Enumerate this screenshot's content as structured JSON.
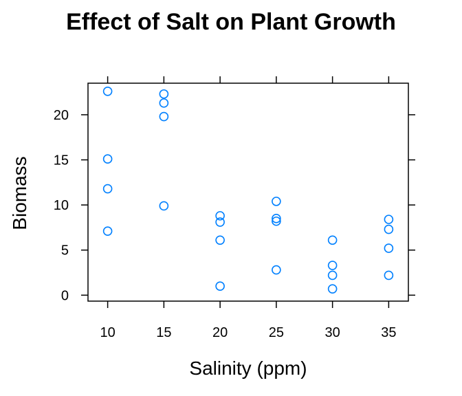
{
  "chart_data": {
    "type": "scatter",
    "title": "Effect of Salt on Plant Growth",
    "xlabel": "Salinity (ppm)",
    "ylabel": "Biomass",
    "xlim": [
      8.25,
      36.75
    ],
    "ylim": [
      -0.66,
      23.5
    ],
    "xticks": [
      10,
      15,
      20,
      25,
      30,
      35
    ],
    "yticks": [
      0,
      5,
      10,
      15,
      20
    ],
    "point_color": "#0080ff",
    "grid": false,
    "legend": "none",
    "points": [
      {
        "x": 10,
        "y": 22.6
      },
      {
        "x": 10,
        "y": 15.1
      },
      {
        "x": 10,
        "y": 11.8
      },
      {
        "x": 10,
        "y": 7.1
      },
      {
        "x": 15,
        "y": 22.3
      },
      {
        "x": 15,
        "y": 21.3
      },
      {
        "x": 15,
        "y": 19.8
      },
      {
        "x": 15,
        "y": 9.9
      },
      {
        "x": 20,
        "y": 8.8
      },
      {
        "x": 20,
        "y": 8.1
      },
      {
        "x": 20,
        "y": 6.1
      },
      {
        "x": 20,
        "y": 1.0
      },
      {
        "x": 25,
        "y": 10.4
      },
      {
        "x": 25,
        "y": 8.5
      },
      {
        "x": 25,
        "y": 8.2
      },
      {
        "x": 25,
        "y": 2.8
      },
      {
        "x": 30,
        "y": 6.1
      },
      {
        "x": 30,
        "y": 3.3
      },
      {
        "x": 30,
        "y": 2.2
      },
      {
        "x": 30,
        "y": 0.7
      },
      {
        "x": 35,
        "y": 8.4
      },
      {
        "x": 35,
        "y": 7.3
      },
      {
        "x": 35,
        "y": 5.2
      },
      {
        "x": 35,
        "y": 2.2
      }
    ]
  }
}
